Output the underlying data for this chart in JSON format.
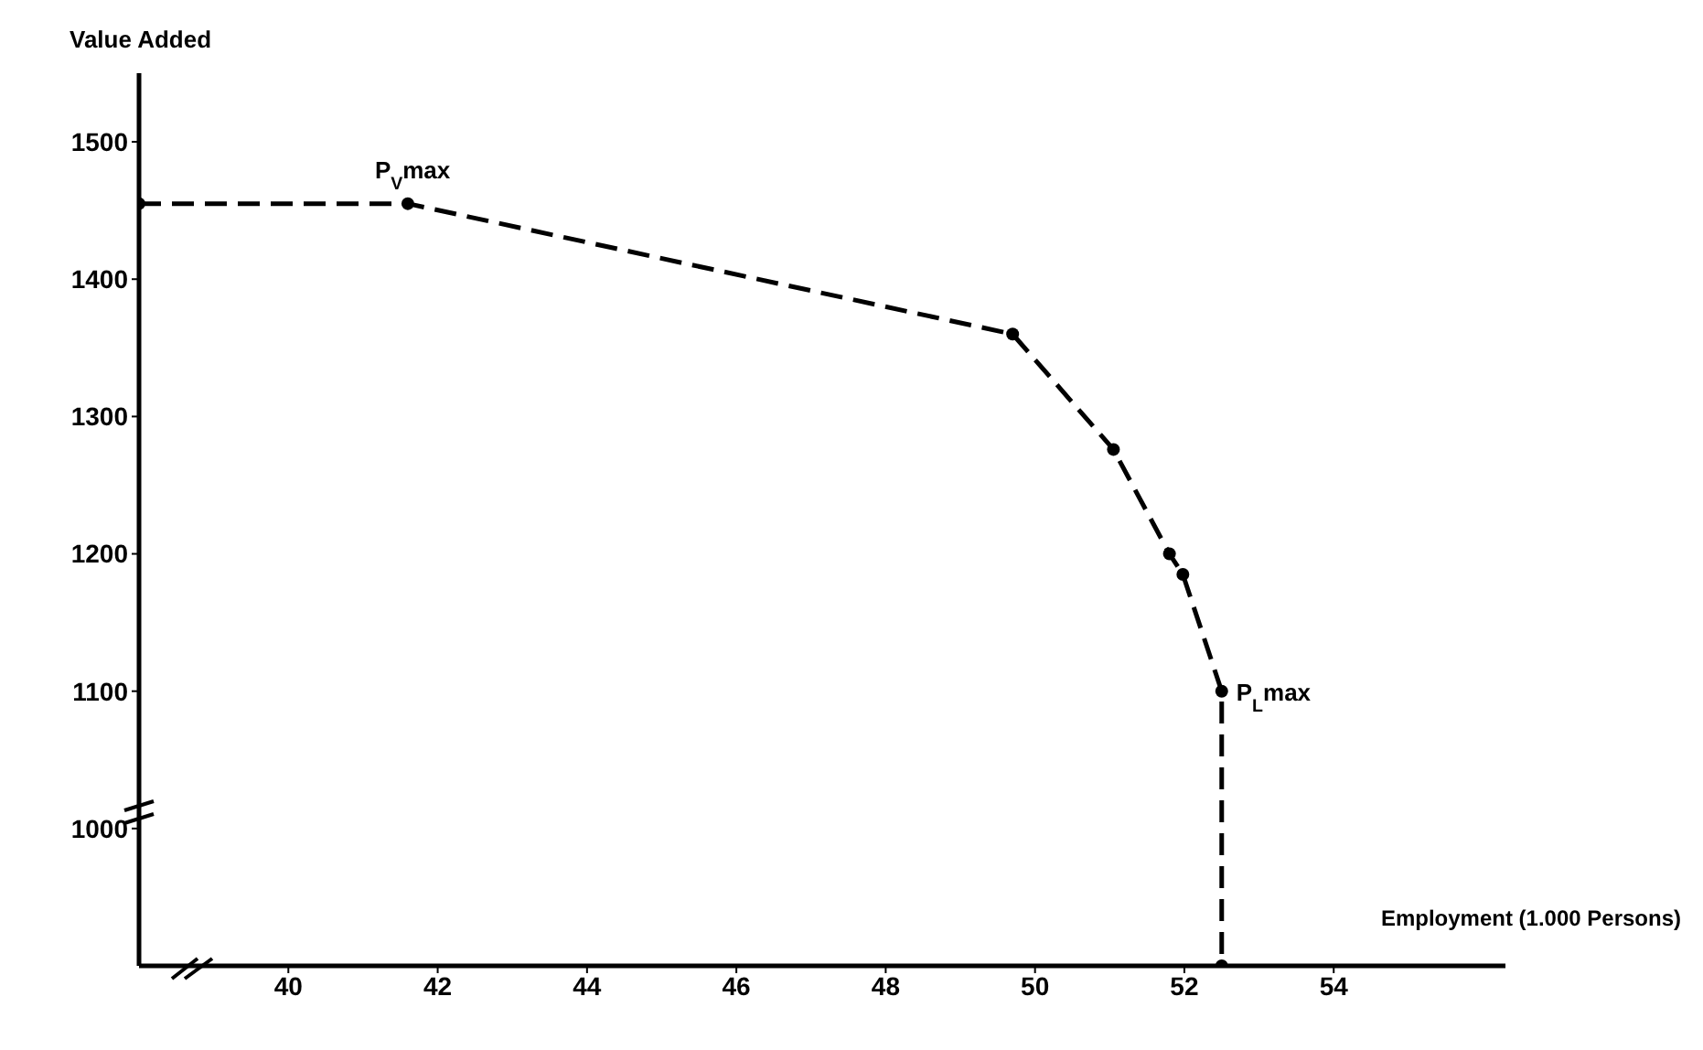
{
  "chart_data": {
    "type": "line",
    "xlabel": "Employment (1.000 Persons)",
    "ylabel": "Value Added",
    "x": [
      38,
      41.6,
      49.7,
      51.05,
      51.8,
      51.98,
      52.5,
      52.5
    ],
    "series": [
      {
        "color": "#000000",
        "values": [
          1455,
          1455,
          1360,
          1276,
          1200,
          1185,
          1100,
          900
        ]
      }
    ],
    "xlim": [
      38,
      56.3
    ],
    "xticks": [
      40,
      42,
      44,
      46,
      48,
      50,
      52,
      54
    ],
    "ylim": [
      900,
      1550
    ],
    "yticks": [
      1000,
      1100,
      1200,
      1300,
      1400,
      1500
    ],
    "grid": false,
    "legend": false,
    "marker": "circle",
    "line_style": "dashed",
    "annotations": [
      {
        "text": "P$_{V}$max",
        "x": 41.6,
        "y": 1455
      },
      {
        "text": "P$_{L}$max",
        "x": 52.5,
        "y": 1100
      }
    ]
  }
}
